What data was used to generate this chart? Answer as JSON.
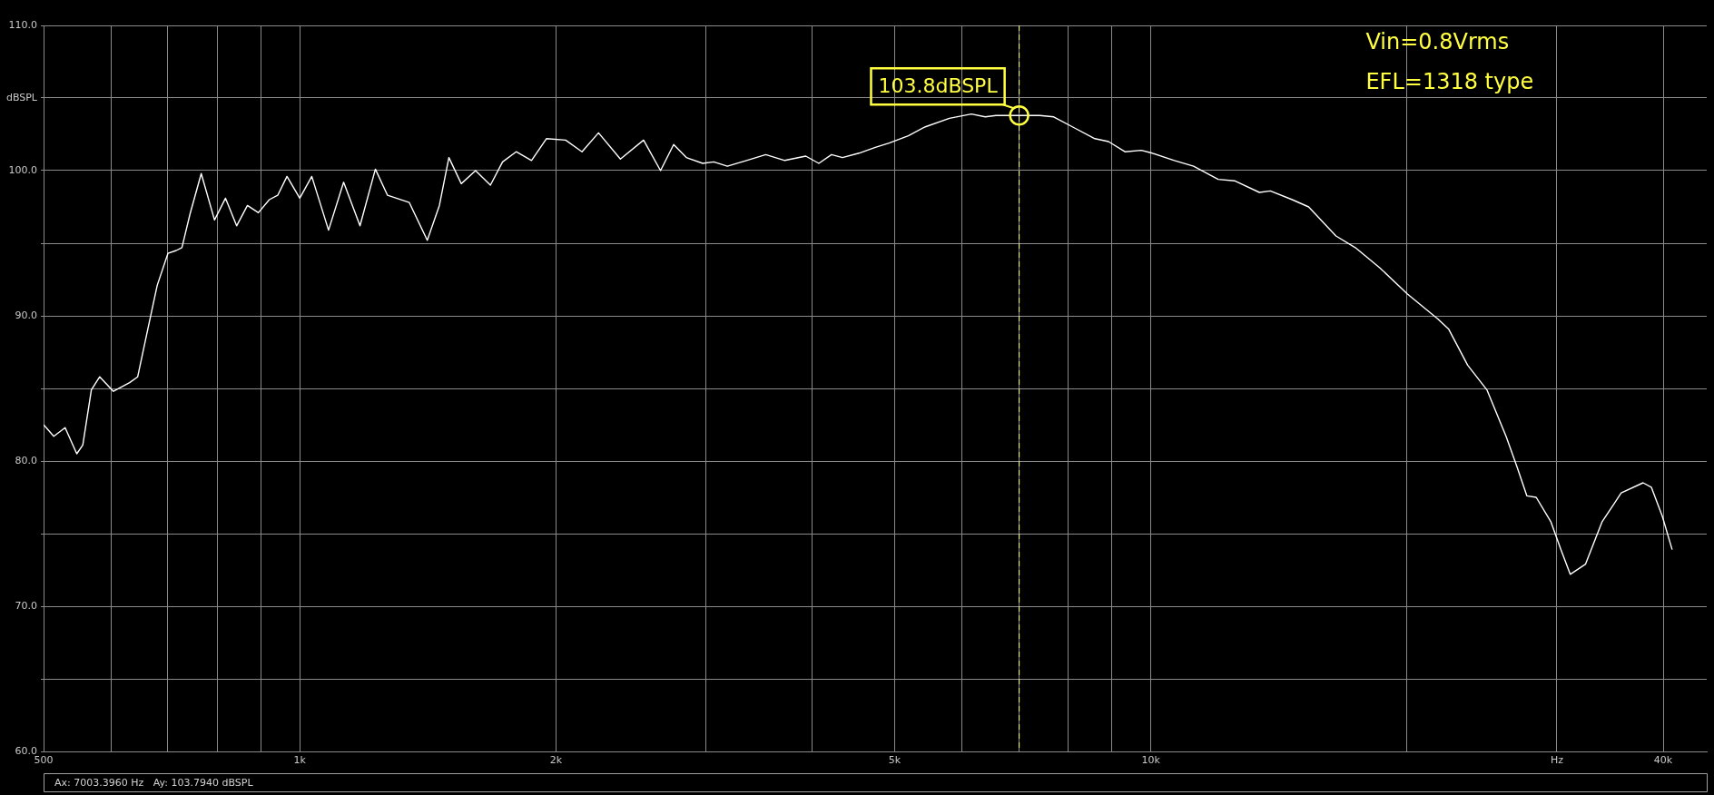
{
  "chart_data": {
    "type": "line",
    "x": [
      500,
      514,
      530,
      547,
      556,
      569,
      582,
      604,
      631,
      645,
      663,
      680,
      700,
      716,
      727,
      743,
      766,
      794,
      818,
      843,
      868,
      894,
      921,
      942,
      966,
      1000,
      1033,
      1081,
      1126,
      1177,
      1227,
      1268,
      1345,
      1412,
      1459,
      1497,
      1548,
      1609,
      1675,
      1731,
      1796,
      1872,
      1949,
      2053,
      2146,
      2244,
      2381,
      2535,
      2654,
      2750,
      2846,
      2975,
      3065,
      3180,
      3349,
      3528,
      3715,
      3931,
      4073,
      4215,
      4342,
      4540,
      4746,
      4926,
      5189,
      5424,
      5799,
      6154,
      6387,
      6579,
      7003,
      7407,
      7690,
      8098,
      8595,
      8919,
      9323,
      9746,
      10040,
      10657,
      11226,
      12000,
      12540,
      13415,
      13817,
      14660,
      15328,
      16502,
      17387,
      18587,
      20025,
      21727,
      22378,
      23566,
      24826,
      26146,
      26934,
      27664,
      28368,
      29526,
      30327,
      31104,
      32421,
      33893,
      35701,
      37879,
      38734,
      39900,
      40980
    ],
    "series": [
      {
        "color": "#ffffff",
        "values": [
          82.5,
          81.7,
          82.3,
          80.5,
          81.1,
          84.9,
          85.8,
          84.8,
          85.4,
          85.8,
          89.1,
          92.1,
          94.3,
          94.5,
          94.7,
          97.0,
          99.8,
          96.6,
          98.1,
          96.2,
          97.6,
          97.1,
          98.0,
          98.3,
          99.6,
          98.1,
          99.6,
          95.9,
          99.2,
          96.2,
          100.1,
          98.3,
          97.8,
          95.2,
          97.6,
          100.9,
          99.1,
          100.0,
          99.0,
          100.6,
          101.3,
          100.7,
          102.2,
          102.1,
          101.3,
          102.6,
          100.8,
          102.1,
          100.0,
          101.8,
          100.9,
          100.5,
          100.6,
          100.3,
          100.7,
          101.1,
          100.7,
          101.0,
          100.5,
          101.1,
          100.9,
          101.2,
          101.6,
          101.9,
          102.4,
          103.0,
          103.6,
          103.9,
          103.7,
          103.8,
          103.8,
          103.8,
          103.7,
          103.0,
          102.2,
          102.0,
          101.3,
          101.4,
          101.2,
          100.7,
          100.3,
          99.4,
          99.3,
          98.5,
          98.6,
          98.0,
          97.5,
          95.5,
          94.7,
          93.3,
          91.5,
          89.8,
          89.1,
          86.6,
          84.9,
          81.7,
          79.6,
          77.6,
          77.5,
          75.8,
          73.9,
          72.2,
          72.9,
          75.8,
          77.8,
          78.5,
          78.2,
          76.2,
          73.9
        ]
      }
    ],
    "log": "x",
    "xlim": [
      500,
      45000
    ],
    "ylim": [
      60,
      110
    ],
    "xticks": [
      500,
      {
        "value": 600,
        "label": null
      },
      {
        "value": 700,
        "label": null
      },
      {
        "value": 800,
        "label": null
      },
      {
        "value": 900,
        "label": null
      },
      {
        "value": 1000,
        "label": "1k"
      },
      {
        "value": 2000,
        "label": "2k"
      },
      {
        "value": 3000,
        "label": null
      },
      {
        "value": 4000,
        "label": null
      },
      {
        "value": 5000,
        "label": "5k"
      },
      {
        "value": 6000,
        "label": null
      },
      {
        "value": 7000,
        "label": null
      },
      {
        "value": 8000,
        "label": null
      },
      {
        "value": 9000,
        "label": null
      },
      {
        "value": 10000,
        "label": "10k"
      },
      {
        "value": 20000,
        "label": null
      },
      {
        "value": 30000,
        "label": "Hz"
      },
      {
        "value": 40000,
        "label": "40k"
      }
    ],
    "yticks": [
      {
        "value": 60,
        "label": "60.0"
      },
      {
        "value": 65,
        "label": null
      },
      {
        "value": 70,
        "label": "70.0"
      },
      {
        "value": 75,
        "label": null
      },
      {
        "value": 80,
        "label": "80.0"
      },
      {
        "value": 85,
        "label": null
      },
      {
        "value": 90,
        "label": "90.0"
      },
      {
        "value": 95,
        "label": null
      },
      {
        "value": 100,
        "label": "100.0"
      },
      {
        "value": 105,
        "label": "dBSPL"
      },
      {
        "value": 110,
        "label": "110.0"
      }
    ],
    "grid": true,
    "legend": false,
    "marker": "none",
    "line_style": "solid",
    "ref_lines": [
      {
        "axis": "x",
        "value": 7003.396,
        "color": "#ffff80",
        "line_style": "dashed"
      }
    ],
    "annotations": [
      {
        "text": "103.8dBSPL",
        "x": 7003.396,
        "y": 103.8
      },
      "Vin=0.8Vrms",
      "EFL=1318 type",
      "Ax: 7003.3960 Hz   Ay: 103.7940 dBSPL"
    ]
  }
}
